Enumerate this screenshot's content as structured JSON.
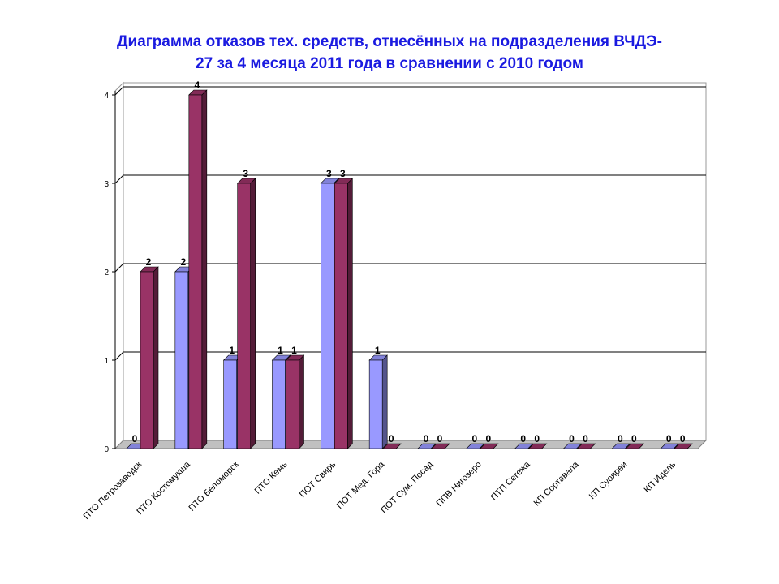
{
  "chart_data": {
    "type": "bar",
    "title_line1": "Диаграмма отказов тех. средств, отнесённых на подразделения ВЧДЭ-",
    "title_line2": "27 за 4 месяца 2011 года в сравнении с 2010 годом",
    "categories": [
      "ПТО Петрозаводск",
      "ПТО Костомукша",
      "ПТО Беломорск",
      "ПТО Кемь",
      "ПОТ Свирь",
      "ПОТ Мед. Гора",
      "ПОТ Сум. Посад",
      "ППВ Нигозеро",
      "ПТП Сегежа",
      "КП Сортавала",
      "КП Суоярви",
      "КП Идель"
    ],
    "series": [
      {
        "values": [
          0,
          2,
          1,
          1,
          3,
          1,
          0,
          0,
          0,
          0,
          0,
          0
        ],
        "color": "#9999ff"
      },
      {
        "values": [
          2,
          4,
          3,
          1,
          3,
          0,
          0,
          0,
          0,
          0,
          0,
          0
        ],
        "color": "#993366"
      }
    ],
    "y_ticks": [
      "0",
      "1",
      "2",
      "3",
      "4"
    ],
    "ylim": [
      0,
      4
    ],
    "grid": true,
    "legend": "none",
    "three_d": true
  }
}
